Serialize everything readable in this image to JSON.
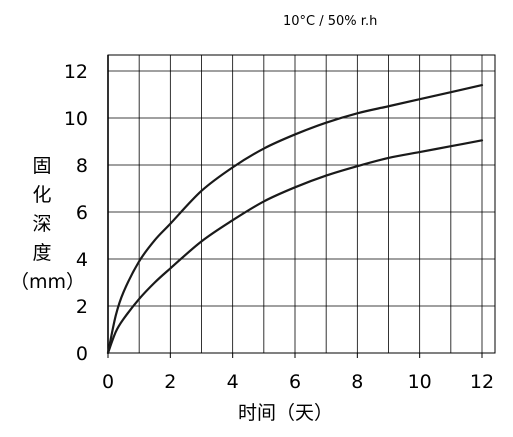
{
  "chart_data": {
    "type": "line",
    "title": "",
    "subtitle": "10°C / 50% r.h",
    "xlabel": "时间（天）",
    "ylabel": "固\n化\n深\n度\n（mm）",
    "xlim": [
      0,
      12
    ],
    "ylim": [
      0,
      12
    ],
    "xticks": [
      0,
      2,
      4,
      6,
      8,
      10,
      12
    ],
    "yticks": [
      0,
      2,
      4,
      6,
      8,
      10,
      12
    ],
    "grid": true,
    "legend": "none",
    "series": [
      {
        "x": [
          0,
          0.25,
          0.5,
          1,
          1.5,
          2,
          3,
          4,
          5,
          6,
          7,
          8,
          9,
          10,
          11,
          12
        ],
        "values": [
          0,
          1.6,
          2.6,
          3.9,
          4.8,
          5.5,
          6.9,
          7.9,
          8.7,
          9.3,
          9.8,
          10.2,
          10.5,
          10.8,
          11.1,
          11.4
        ]
      },
      {
        "x": [
          0,
          0.25,
          0.5,
          1,
          1.5,
          2,
          3,
          4,
          5,
          6,
          7,
          8,
          9,
          10,
          11,
          12
        ],
        "values": [
          0,
          0.9,
          1.45,
          2.3,
          3.0,
          3.6,
          4.75,
          5.65,
          6.45,
          7.05,
          7.55,
          7.95,
          8.3,
          8.55,
          8.8,
          9.05
        ]
      }
    ],
    "colors": {
      "line": "#1a1a1a",
      "grid": "#000000",
      "text": "#000000"
    }
  }
}
